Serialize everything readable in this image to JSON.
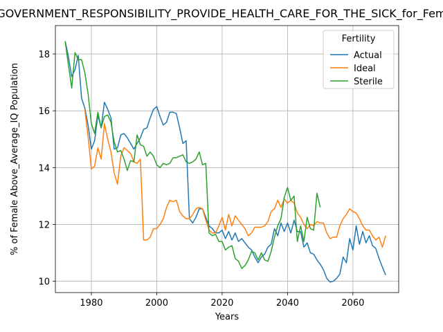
{
  "chart_data": {
    "type": "line",
    "title": "GOVERNMENT_RESPONSIBILITY_PROVIDE_HEALTH_CARE_FOR_THE_SICK_for_Female",
    "xlabel": "Years",
    "ylabel": "% of Female Above_Average_IQ Population",
    "xlim": [
      1969,
      2074
    ],
    "ylim": [
      9.6,
      19.0
    ],
    "xticks": [
      1980,
      2000,
      2020,
      2040,
      2060
    ],
    "yticks": [
      10,
      12,
      14,
      16,
      18
    ],
    "grid": true,
    "legend": {
      "title": "Fertility",
      "placement": "top-right"
    },
    "series": [
      {
        "name": "Actual",
        "color": "#1f77b4",
        "points": [
          [
            1972,
            18.45
          ],
          [
            1973,
            17.9
          ],
          [
            1974,
            17.2
          ],
          [
            1975,
            17.45
          ],
          [
            1976,
            17.95
          ],
          [
            1977,
            16.45
          ],
          [
            1978,
            16.1
          ],
          [
            1979,
            15.5
          ],
          [
            1980,
            14.65
          ],
          [
            1981,
            14.95
          ],
          [
            1982,
            15.85
          ],
          [
            1983,
            15.4
          ],
          [
            1984,
            16.3
          ],
          [
            1985,
            16.05
          ],
          [
            1986,
            15.75
          ],
          [
            1987,
            14.65
          ],
          [
            1988,
            14.7
          ],
          [
            1989,
            15.15
          ],
          [
            1990,
            15.2
          ],
          [
            1991,
            15.05
          ],
          [
            1992,
            14.85
          ],
          [
            1993,
            14.65
          ],
          [
            1994,
            14.85
          ],
          [
            1995,
            15.05
          ],
          [
            1996,
            15.35
          ],
          [
            1997,
            15.4
          ],
          [
            1998,
            15.75
          ],
          [
            1999,
            16.05
          ],
          [
            2000,
            16.15
          ],
          [
            2001,
            15.8
          ],
          [
            2002,
            15.5
          ],
          [
            2003,
            15.6
          ],
          [
            2004,
            15.95
          ],
          [
            2005,
            15.95
          ],
          [
            2006,
            15.9
          ],
          [
            2007,
            15.4
          ],
          [
            2008,
            14.85
          ],
          [
            2009,
            14.95
          ],
          [
            2010,
            12.2
          ],
          [
            2011,
            12.05
          ],
          [
            2012,
            12.25
          ],
          [
            2013,
            12.55
          ],
          [
            2014,
            12.55
          ],
          [
            2015,
            12.25
          ],
          [
            2016,
            11.95
          ],
          [
            2017,
            11.85
          ],
          [
            2018,
            11.7
          ],
          [
            2019,
            11.7
          ],
          [
            2020,
            11.8
          ],
          [
            2021,
            11.5
          ],
          [
            2022,
            11.75
          ],
          [
            2023,
            11.45
          ],
          [
            2024,
            11.7
          ],
          [
            2025,
            11.4
          ],
          [
            2026,
            11.5
          ],
          [
            2027,
            11.35
          ],
          [
            2028,
            11.2
          ],
          [
            2029,
            11.1
          ],
          [
            2030,
            10.85
          ],
          [
            2031,
            10.65
          ],
          [
            2032,
            10.85
          ],
          [
            2033,
            10.95
          ],
          [
            2034,
            11.2
          ],
          [
            2035,
            11.3
          ],
          [
            2036,
            11.85
          ],
          [
            2037,
            11.6
          ],
          [
            2038,
            12.05
          ],
          [
            2039,
            11.75
          ],
          [
            2040,
            12.05
          ],
          [
            2041,
            11.7
          ],
          [
            2042,
            12.15
          ],
          [
            2043,
            11.75
          ],
          [
            2044,
            11.75
          ],
          [
            2045,
            11.2
          ],
          [
            2046,
            11.35
          ],
          [
            2047,
            11.0
          ],
          [
            2048,
            10.95
          ],
          [
            2049,
            10.75
          ],
          [
            2050,
            10.6
          ],
          [
            2051,
            10.4
          ],
          [
            2052,
            10.1
          ],
          [
            2053,
            9.97
          ],
          [
            2054,
            10.0
          ],
          [
            2055,
            10.1
          ],
          [
            2056,
            10.25
          ],
          [
            2057,
            10.85
          ],
          [
            2058,
            10.65
          ],
          [
            2059,
            11.5
          ],
          [
            2060,
            11.1
          ],
          [
            2061,
            11.95
          ],
          [
            2062,
            11.3
          ],
          [
            2063,
            11.75
          ],
          [
            2064,
            11.35
          ],
          [
            2065,
            11.6
          ],
          [
            2066,
            11.25
          ],
          [
            2067,
            11.15
          ],
          [
            2068,
            10.8
          ],
          [
            2069,
            10.5
          ],
          [
            2070,
            10.22
          ]
        ]
      },
      {
        "name": "Ideal",
        "color": "#ff7f0e",
        "points": [
          [
            1978,
            16.05
          ],
          [
            1979,
            15.1
          ],
          [
            1980,
            13.95
          ],
          [
            1981,
            14.05
          ],
          [
            1982,
            14.7
          ],
          [
            1983,
            14.3
          ],
          [
            1984,
            15.55
          ],
          [
            1985,
            15.0
          ],
          [
            1986,
            14.55
          ],
          [
            1987,
            13.8
          ],
          [
            1988,
            13.42
          ],
          [
            1989,
            14.4
          ],
          [
            1990,
            14.7
          ],
          [
            1991,
            14.6
          ],
          [
            1992,
            14.5
          ],
          [
            1993,
            14.2
          ],
          [
            1994,
            14.15
          ],
          [
            1995,
            14.3
          ],
          [
            1996,
            11.45
          ],
          [
            1997,
            11.45
          ],
          [
            1998,
            11.55
          ],
          [
            1999,
            11.85
          ],
          [
            2000,
            11.85
          ],
          [
            2001,
            12.0
          ],
          [
            2002,
            12.2
          ],
          [
            2003,
            12.6
          ],
          [
            2004,
            12.85
          ],
          [
            2005,
            12.8
          ],
          [
            2006,
            12.85
          ],
          [
            2007,
            12.45
          ],
          [
            2008,
            12.3
          ],
          [
            2009,
            12.2
          ],
          [
            2010,
            12.2
          ],
          [
            2011,
            12.35
          ],
          [
            2012,
            12.55
          ],
          [
            2013,
            12.6
          ],
          [
            2014,
            12.55
          ],
          [
            2015,
            12.15
          ],
          [
            2016,
            11.8
          ],
          [
            2017,
            11.7
          ],
          [
            2018,
            11.7
          ],
          [
            2019,
            11.95
          ],
          [
            2020,
            12.25
          ],
          [
            2021,
            11.8
          ],
          [
            2022,
            12.35
          ],
          [
            2023,
            11.95
          ],
          [
            2024,
            12.3
          ],
          [
            2025,
            12.15
          ],
          [
            2026,
            12.0
          ],
          [
            2027,
            11.85
          ],
          [
            2028,
            11.6
          ],
          [
            2029,
            11.7
          ],
          [
            2030,
            11.9
          ],
          [
            2031,
            11.9
          ],
          [
            2032,
            11.9
          ],
          [
            2033,
            11.95
          ],
          [
            2034,
            12.1
          ],
          [
            2035,
            12.45
          ],
          [
            2036,
            12.55
          ],
          [
            2037,
            12.85
          ],
          [
            2038,
            12.6
          ],
          [
            2039,
            12.9
          ],
          [
            2040,
            12.75
          ],
          [
            2041,
            12.85
          ],
          [
            2042,
            12.75
          ],
          [
            2043,
            12.4
          ],
          [
            2044,
            12.25
          ],
          [
            2045,
            12.0
          ],
          [
            2046,
            11.85
          ],
          [
            2047,
            12.0
          ],
          [
            2048,
            11.95
          ],
          [
            2049,
            12.1
          ],
          [
            2050,
            12.05
          ],
          [
            2051,
            12.05
          ],
          [
            2052,
            11.7
          ],
          [
            2053,
            11.5
          ],
          [
            2054,
            11.55
          ],
          [
            2055,
            11.55
          ],
          [
            2056,
            11.95
          ],
          [
            2057,
            12.2
          ],
          [
            2058,
            12.35
          ],
          [
            2059,
            12.55
          ],
          [
            2060,
            12.45
          ],
          [
            2061,
            12.4
          ],
          [
            2062,
            12.2
          ],
          [
            2063,
            11.95
          ],
          [
            2064,
            11.8
          ],
          [
            2065,
            11.8
          ],
          [
            2066,
            11.6
          ],
          [
            2067,
            11.45
          ],
          [
            2068,
            11.55
          ],
          [
            2069,
            11.2
          ],
          [
            2070,
            11.6
          ]
        ]
      },
      {
        "name": "Sterile",
        "color": "#2ca02c",
        "points": [
          [
            1972,
            18.45
          ],
          [
            1973,
            17.6
          ],
          [
            1974,
            16.8
          ],
          [
            1975,
            18.05
          ],
          [
            1976,
            17.8
          ],
          [
            1977,
            17.8
          ],
          [
            1978,
            17.35
          ],
          [
            1979,
            16.6
          ],
          [
            1980,
            15.55
          ],
          [
            1981,
            15.2
          ],
          [
            1982,
            15.95
          ],
          [
            1983,
            15.4
          ],
          [
            1984,
            15.8
          ],
          [
            1985,
            15.85
          ],
          [
            1986,
            15.6
          ],
          [
            1987,
            14.9
          ],
          [
            1988,
            14.55
          ],
          [
            1989,
            14.6
          ],
          [
            1990,
            14.3
          ],
          [
            1991,
            13.9
          ],
          [
            1992,
            14.25
          ],
          [
            1993,
            14.2
          ],
          [
            1994,
            15.15
          ],
          [
            1995,
            14.8
          ],
          [
            1996,
            14.75
          ],
          [
            1997,
            14.4
          ],
          [
            1998,
            14.55
          ],
          [
            1999,
            14.4
          ],
          [
            2000,
            14.1
          ],
          [
            2001,
            14.0
          ],
          [
            2002,
            14.15
          ],
          [
            2003,
            14.1
          ],
          [
            2004,
            14.15
          ],
          [
            2005,
            14.35
          ],
          [
            2006,
            14.35
          ],
          [
            2007,
            14.4
          ],
          [
            2008,
            14.45
          ],
          [
            2009,
            14.2
          ],
          [
            2010,
            14.15
          ],
          [
            2011,
            14.2
          ],
          [
            2012,
            14.3
          ],
          [
            2013,
            14.55
          ],
          [
            2014,
            14.1
          ],
          [
            2015,
            14.15
          ],
          [
            2016,
            11.7
          ],
          [
            2017,
            11.6
          ],
          [
            2018,
            11.65
          ],
          [
            2019,
            11.4
          ],
          [
            2020,
            11.4
          ],
          [
            2021,
            11.1
          ],
          [
            2022,
            11.2
          ],
          [
            2023,
            11.25
          ],
          [
            2024,
            10.8
          ],
          [
            2025,
            10.7
          ],
          [
            2026,
            10.45
          ],
          [
            2027,
            10.55
          ],
          [
            2028,
            10.75
          ],
          [
            2029,
            11.05
          ],
          [
            2030,
            11.0
          ],
          [
            2031,
            10.75
          ],
          [
            2032,
            11.0
          ],
          [
            2033,
            10.75
          ],
          [
            2034,
            10.7
          ],
          [
            2035,
            11.05
          ],
          [
            2036,
            11.55
          ],
          [
            2037,
            11.95
          ],
          [
            2038,
            12.2
          ],
          [
            2039,
            12.95
          ],
          [
            2040,
            13.3
          ],
          [
            2041,
            12.85
          ],
          [
            2042,
            13.0
          ],
          [
            2043,
            11.4
          ],
          [
            2044,
            11.95
          ],
          [
            2045,
            11.4
          ],
          [
            2046,
            12.25
          ],
          [
            2047,
            11.85
          ],
          [
            2048,
            11.8
          ],
          [
            2049,
            13.1
          ],
          [
            2050,
            12.6
          ]
        ]
      }
    ]
  }
}
